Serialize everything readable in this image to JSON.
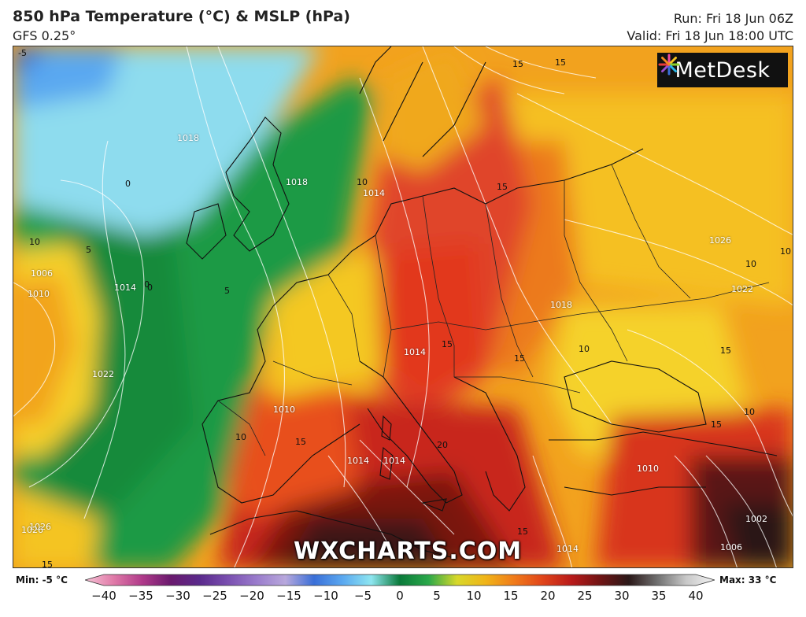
{
  "header": {
    "title": "850 hPa Temperature (°C) & MSLP (hPa)",
    "model": "GFS 0.25°",
    "run": "Run: Fri 18 Jun 06Z",
    "valid": "Valid: Fri 18 Jun 18:00 UTC"
  },
  "logo": {
    "text": "MetDesk",
    "icon": "metdesk-star-logo"
  },
  "watermark": "WXCHARTS.COM",
  "legend": {
    "min_label": "Min: -5 °C",
    "max_label": "Max: 33 °C",
    "ticks": [
      "−40",
      "−35",
      "−30",
      "−25",
      "−20",
      "−15",
      "−10",
      "−5",
      "0",
      "5",
      "10",
      "15",
      "20",
      "25",
      "30",
      "35",
      "40"
    ],
    "colors": [
      "#f7c4d6",
      "#e07aa8",
      "#b03a8a",
      "#6a1a6e",
      "#5a2a8c",
      "#7a4fb0",
      "#9a7ccc",
      "#b8a8dc",
      "#3a6fd8",
      "#5aa8f0",
      "#8ee6f0",
      "#0a7a3a",
      "#2aa84a",
      "#d8d82a",
      "#f0b418",
      "#f07a1a",
      "#e0441a",
      "#b81a1a",
      "#701414",
      "#2a1818",
      "#707070",
      "#c8c8c8",
      "#f4f4f4"
    ]
  },
  "map": {
    "isobar_labels": [
      "1018",
      "1014",
      "1010",
      "1006",
      "1014",
      "1022",
      "1026",
      "1018",
      "1014",
      "1010",
      "1014",
      "1022",
      "1026",
      "1014",
      "1010",
      "1002",
      "1006",
      "1018",
      "1026",
      "1014"
    ],
    "temp_labels": [
      "-5",
      "0",
      "5",
      "10",
      "0",
      "10",
      "15",
      "15",
      "15",
      "10",
      "10",
      "10",
      "15",
      "15",
      "20",
      "15",
      "15",
      "15",
      "10",
      "15",
      "15",
      "10",
      "5",
      "0"
    ]
  },
  "colors": {
    "cold_sea": "#8edcee",
    "green": "#1f9a44",
    "yellow": "#f5d02a",
    "orange": "#f29a22",
    "red": "#e0442a",
    "dark_red": "#6a1414"
  }
}
